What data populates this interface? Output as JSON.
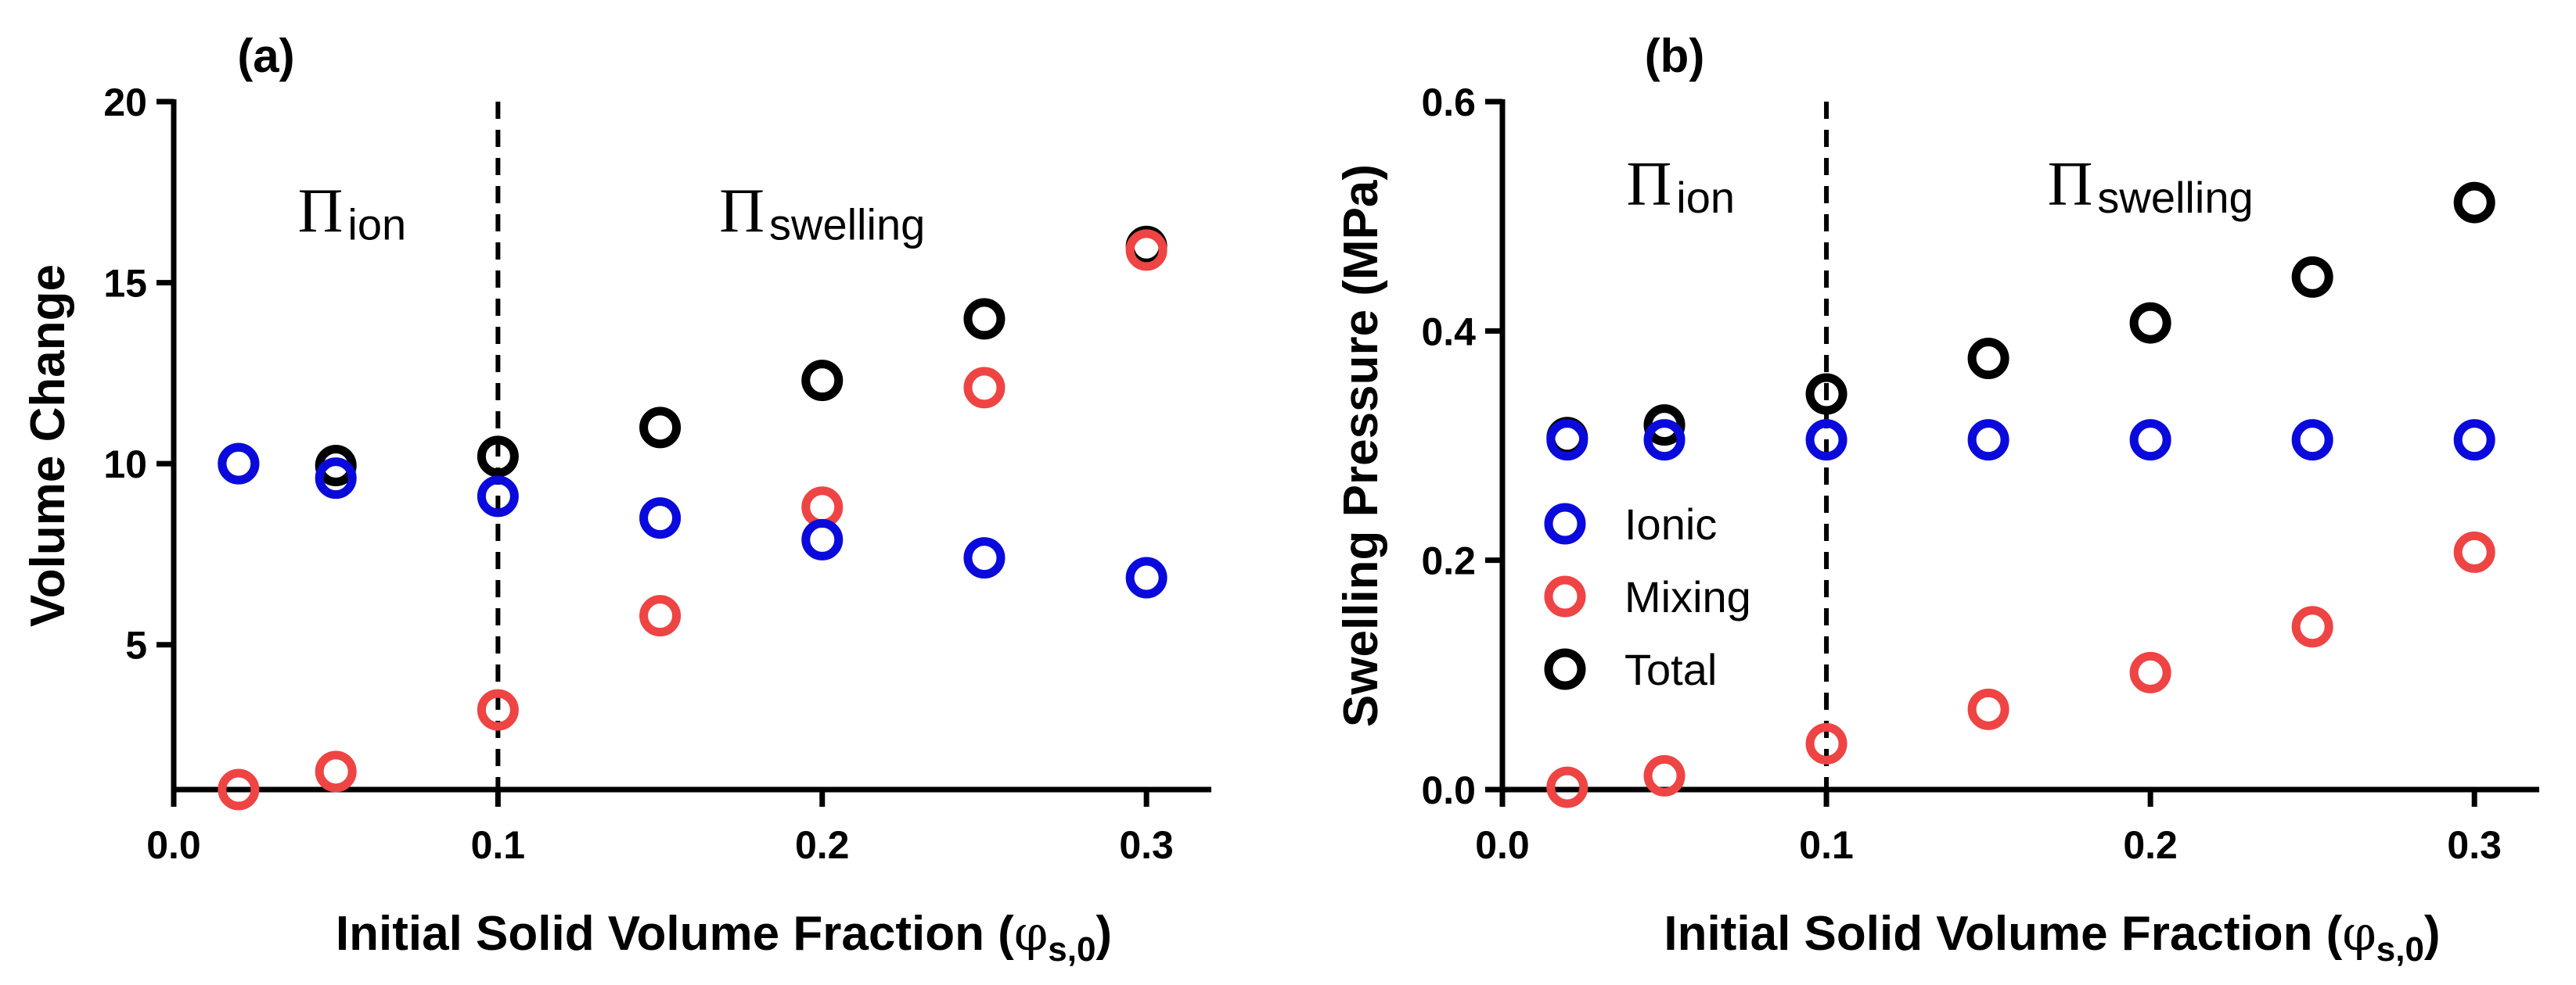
{
  "chart_data": [
    {
      "type": "scatter",
      "panel_label": "(a)",
      "xlabel": "Initial Solid Volume Fraction (",
      "xlabel_symbol": "φ",
      "xlabel_subscript": "s,0",
      "xlabel_close": ")",
      "ylabel": "Volume Change",
      "xlim": [
        0.0,
        0.32
      ],
      "ylim": [
        1,
        20
      ],
      "xticks": [
        0.0,
        0.1,
        0.2,
        0.3
      ],
      "xtick_labels": [
        "0.0",
        "0.1",
        "0.2",
        "0.3"
      ],
      "yticks": [
        5,
        10,
        15,
        20
      ],
      "ytick_labels": [
        "5",
        "10",
        "15",
        "20"
      ],
      "vline_x": 0.1,
      "region_labels": [
        {
          "symbol": "Π",
          "sub": "ion",
          "x": 0.055,
          "y": 16.4
        },
        {
          "symbol": "Π",
          "sub": "swelling",
          "x": 0.2,
          "y": 16.4
        }
      ],
      "grid": false,
      "x": [
        0.02,
        0.05,
        0.1,
        0.15,
        0.2,
        0.25,
        0.3
      ],
      "series": [
        {
          "name": "Ionic",
          "color": "#0a0adc",
          "values": [
            10.0,
            9.6,
            9.1,
            8.5,
            7.9,
            7.4,
            6.85
          ]
        },
        {
          "name": "Mixing",
          "color": "#ef4444",
          "values": [
            1.0,
            1.5,
            3.2,
            5.8,
            8.8,
            12.1,
            15.9
          ]
        },
        {
          "name": "Total",
          "color": "#000000",
          "values": [
            10.0,
            9.95,
            10.2,
            11.0,
            12.3,
            14.0,
            16.0
          ]
        }
      ]
    },
    {
      "type": "scatter",
      "panel_label": "(b)",
      "xlabel": "Initial Solid Volume Fraction (",
      "xlabel_symbol": "φ",
      "xlabel_subscript": "s,0",
      "xlabel_close": ")",
      "ylabel": "Swelling Pressure (MPa)",
      "xlim": [
        0.0,
        0.32
      ],
      "ylim": [
        0.0,
        0.6
      ],
      "xticks": [
        0.0,
        0.1,
        0.2,
        0.3
      ],
      "xtick_labels": [
        "0.0",
        "0.1",
        "0.2",
        "0.3"
      ],
      "yticks": [
        0.0,
        0.2,
        0.4,
        0.6
      ],
      "ytick_labels": [
        "0.0",
        "0.2",
        "0.4",
        "0.6"
      ],
      "vline_x": 0.1,
      "region_labels": [
        {
          "symbol": "Π",
          "sub": "ion",
          "x": 0.055,
          "y": 0.51
        },
        {
          "symbol": "Π",
          "sub": "swelling",
          "x": 0.2,
          "y": 0.51
        }
      ],
      "legend_position": "middle-left",
      "grid": false,
      "x": [
        0.02,
        0.05,
        0.1,
        0.15,
        0.2,
        0.25,
        0.3
      ],
      "series": [
        {
          "name": "Ionic",
          "color": "#0a0adc",
          "values": [
            0.305,
            0.305,
            0.305,
            0.305,
            0.305,
            0.305,
            0.305
          ]
        },
        {
          "name": "Mixing",
          "color": "#ef4444",
          "values": [
            0.002,
            0.012,
            0.04,
            0.07,
            0.102,
            0.142,
            0.207
          ]
        },
        {
          "name": "Total",
          "color": "#000000",
          "values": [
            0.307,
            0.318,
            0.345,
            0.376,
            0.407,
            0.447,
            0.512
          ]
        }
      ]
    }
  ]
}
